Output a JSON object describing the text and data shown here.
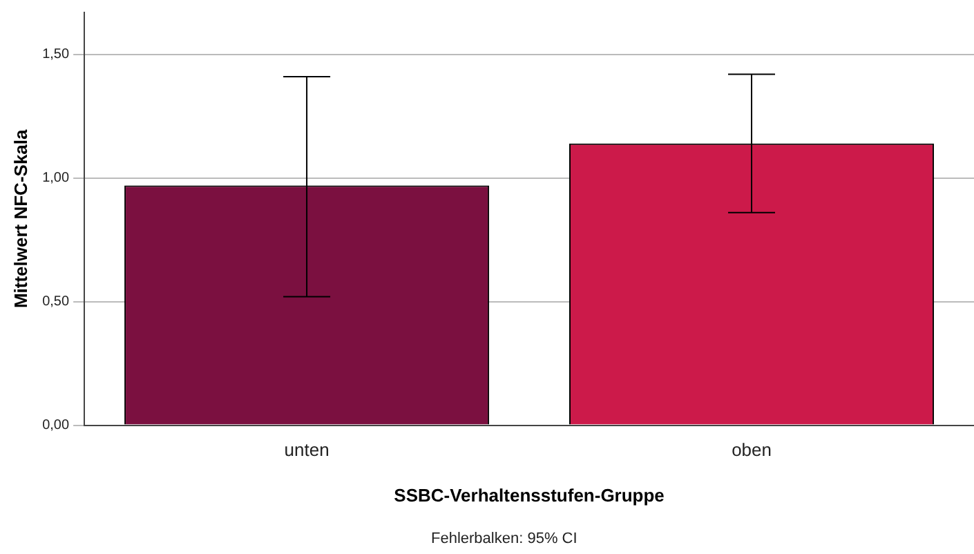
{
  "chart_data": {
    "type": "bar",
    "xlabel": "SSBC-Verhaltensstufen-Gruppe",
    "ylabel": "Mittelwert NFC-Skala",
    "categories": [
      "unten",
      "oben"
    ],
    "values": [
      0.97,
      1.14
    ],
    "colors": [
      "#7b1040",
      "#cc1a4a"
    ],
    "errors": [
      [
        0.52,
        1.41
      ],
      [
        0.86,
        1.42
      ]
    ],
    "ylim": [
      0,
      1.67
    ],
    "yticks": [
      {
        "value": 0,
        "label": "0,00"
      },
      {
        "value": 0.5,
        "label": "0,50"
      },
      {
        "value": 1,
        "label": "1,00"
      },
      {
        "value": 1.5,
        "label": "1,50"
      }
    ],
    "grid": "y",
    "legend": false,
    "annotations": [
      "Fehlerbalken: 95% CI"
    ]
  }
}
